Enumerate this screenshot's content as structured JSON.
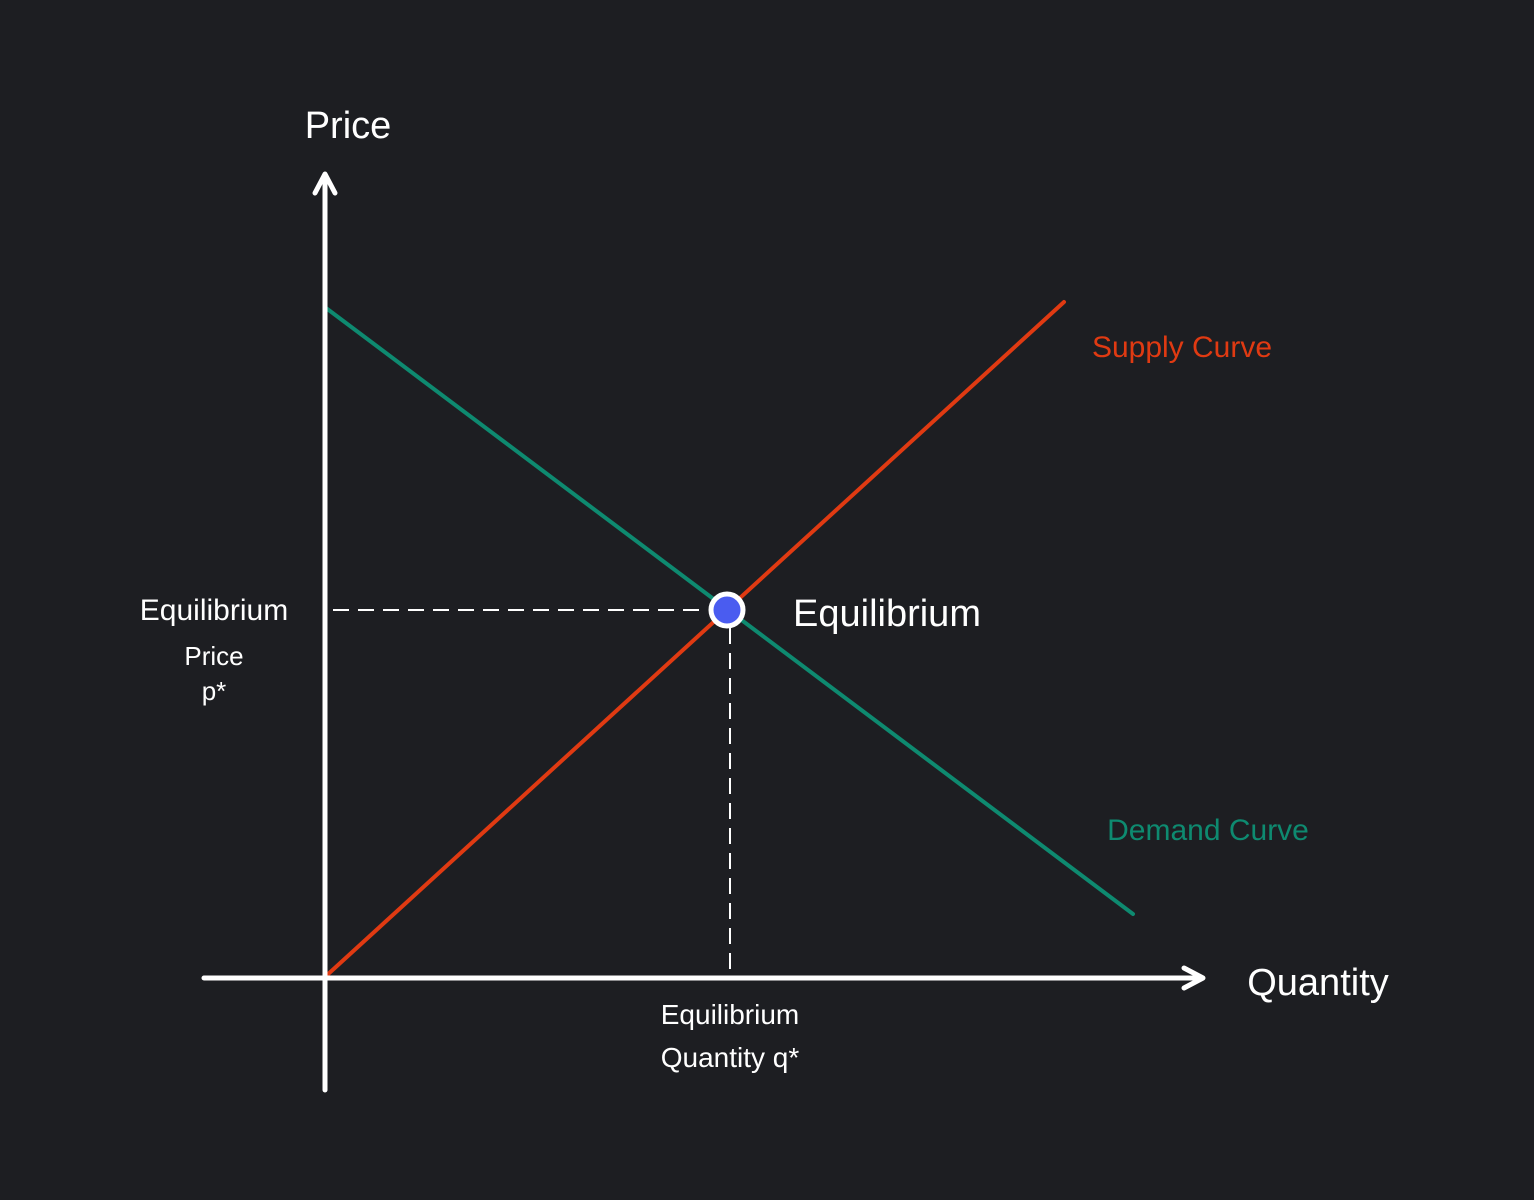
{
  "axes": {
    "y_label": "Price",
    "x_label": "Quantity"
  },
  "curves": {
    "supply": {
      "label": "Supply Curve",
      "color": "#e03a12"
    },
    "demand": {
      "label": "Demand Curve",
      "color": "#0e8a70"
    }
  },
  "equilibrium": {
    "label": "Equilibrium",
    "point_color": "#4a5cf0",
    "price_label": [
      "Equilibrium",
      "Price",
      "p*"
    ],
    "quantity_label": [
      "Equilibrium",
      "Quantity q*"
    ]
  },
  "colors": {
    "background": "#1d1e22",
    "foreground": "#ffffff"
  }
}
